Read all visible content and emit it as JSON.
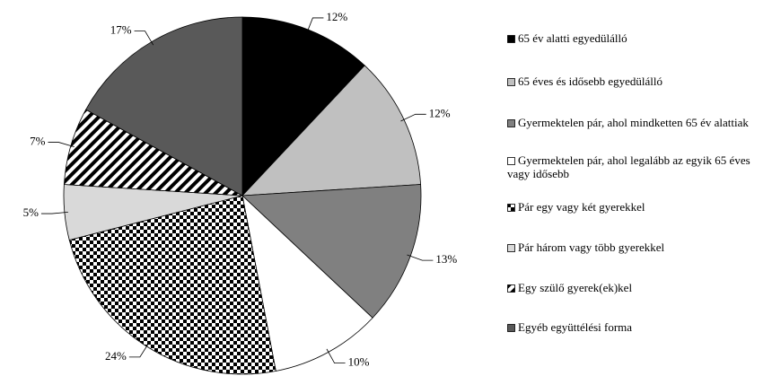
{
  "chart_data": {
    "type": "pie",
    "categories": [
      "65 év alatti egyedülálló",
      "65 éves és idősebb egyedülálló",
      "Gyermektelen pár, ahol mindketten 65 év alattiak",
      "Gyermektelen pár, ahol legalább az egyik 65 éves vagy idősebb",
      "Pár egy vagy két gyerekkel",
      "Pár három vagy több gyerekkel",
      "Egy szülő gyerek(ek)kel",
      "Egyéb együttélési forma"
    ],
    "values": [
      12,
      12,
      13,
      10,
      24,
      5,
      7,
      17
    ],
    "value_labels": [
      "12%",
      "12%",
      "13%",
      "10%",
      "24%",
      "5%",
      "7%",
      "17%"
    ],
    "colors": [
      "#000000",
      "#c0c0c0",
      "#808080",
      "#ffffff",
      "checker",
      "#d9d9d9",
      "stripes",
      "#595959"
    ],
    "legend": "right"
  }
}
